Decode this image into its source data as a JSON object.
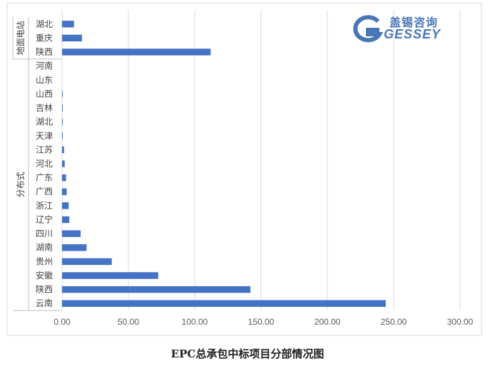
{
  "chart_data": {
    "type": "bar",
    "orientation": "horizontal",
    "title": "EPC总承包中标项目分部情况图",
    "groups": [
      {
        "name": "地面电站",
        "categories": [
          "湖北",
          "重庆",
          "陕西"
        ],
        "values": [
          9,
          15,
          112
        ]
      },
      {
        "name": "分布式",
        "categories": [
          "河南",
          "山东",
          "山西",
          "吉林",
          "湖北",
          "天津",
          "江苏",
          "河北",
          "广东",
          "广西",
          "浙江",
          "辽宁",
          "四川",
          "湖南",
          "贵州",
          "安徽",
          "陕西",
          "云南"
        ],
        "values": [
          0,
          0,
          0.5,
          0.5,
          0.5,
          0.5,
          1.5,
          2,
          3,
          3.5,
          5,
          5.5,
          14,
          18.5,
          37.5,
          72.5,
          142,
          244
        ]
      }
    ],
    "xlim": [
      0,
      300
    ],
    "xticks": [
      "0.00",
      "50.00",
      "100.00",
      "150.00",
      "200.00",
      "250.00",
      "300.00"
    ],
    "grid": true,
    "bar_color": "#4472c4"
  },
  "logo": {
    "cn_text": "盖锡咨询",
    "en_text": "GESSEY",
    "color": "#4a76b8"
  }
}
